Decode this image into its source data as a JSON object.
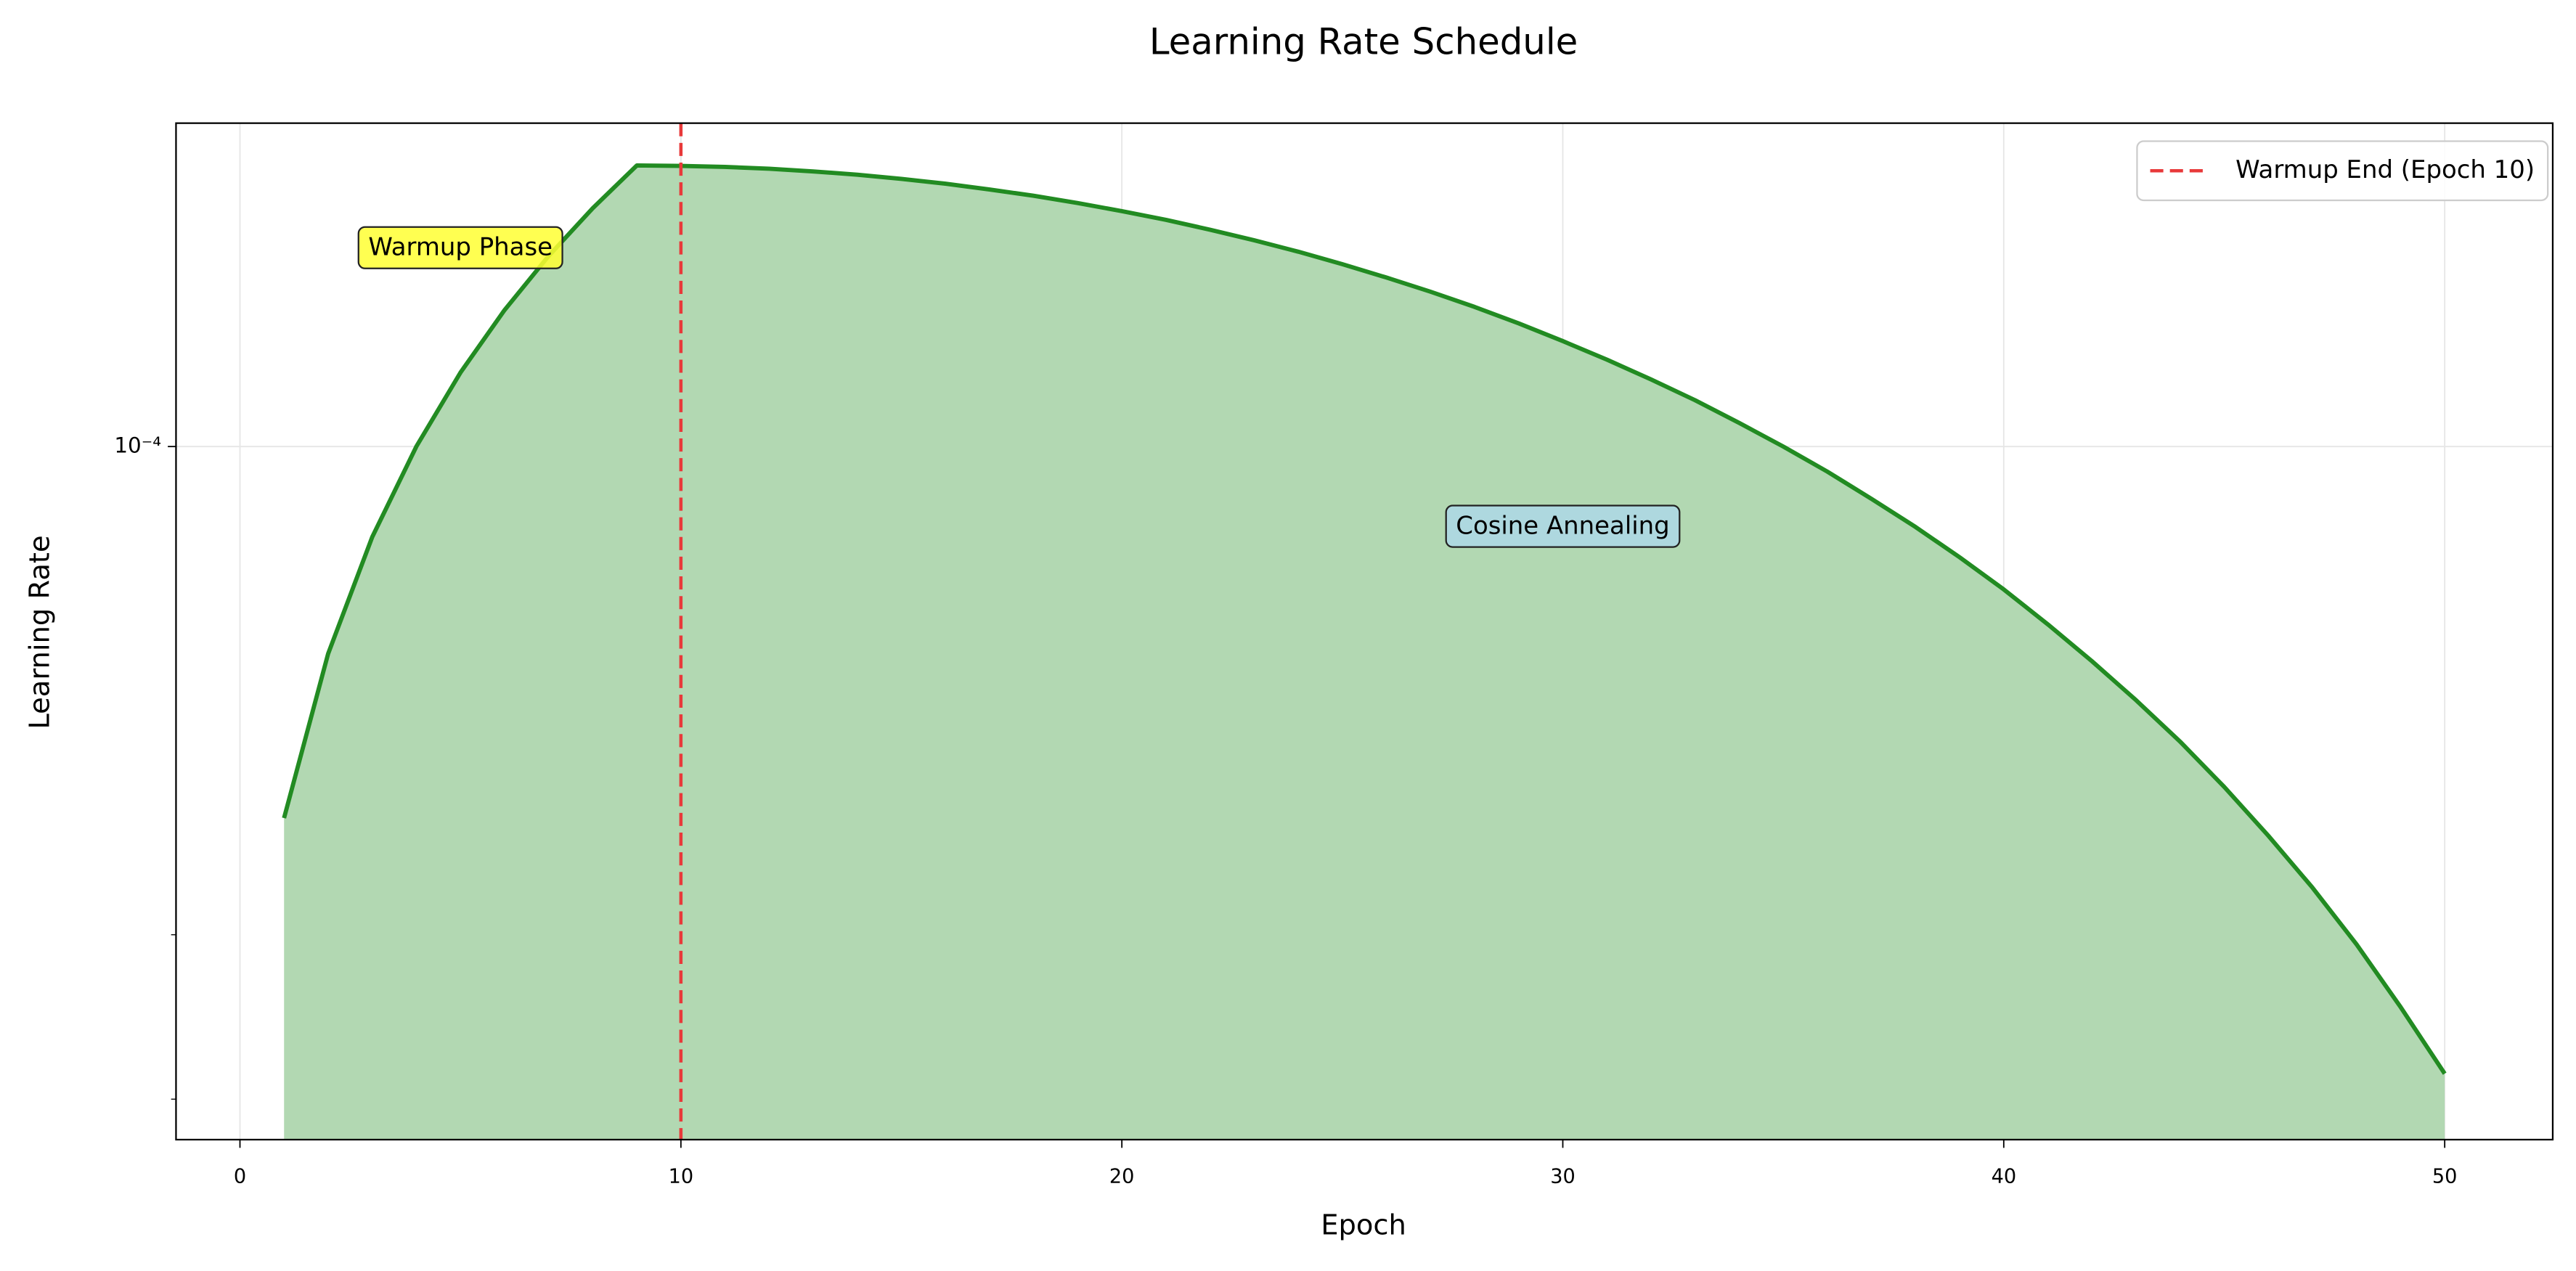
{
  "chart_data": {
    "type": "line",
    "title": "Learning Rate Schedule",
    "x_label": "Epoch",
    "y_label": "Learning Rate",
    "x": [
      1,
      2,
      3,
      4,
      5,
      6,
      7,
      8,
      9,
      10,
      11,
      12,
      13,
      14,
      15,
      16,
      17,
      18,
      19,
      20,
      21,
      22,
      23,
      24,
      25,
      26,
      27,
      28,
      29,
      30,
      31,
      32,
      33,
      34,
      35,
      36,
      37,
      38,
      39,
      40,
      41,
      42,
      43,
      44,
      45,
      46,
      47,
      48,
      49,
      50
    ],
    "series": [
      {
        "color": "#228b22",
        "fill_color": "#b2d8b2",
        "values": [
          4e-05,
          6e-05,
          8e-05,
          0.0001,
          0.00012,
          0.00014,
          0.00016,
          0.00018,
          0.0002,
          0.0001998,
          0.0001993,
          0.0001984,
          0.0001971,
          0.0001955,
          0.0001935,
          0.0001912,
          0.0001885,
          0.0001856,
          0.0001823,
          0.0001787,
          0.0001749,
          0.0001707,
          0.0001663,
          0.0001617,
          0.0001568,
          0.0001517,
          0.0001465,
          0.0001411,
          0.0001355,
          0.0001297,
          0.0001239,
          0.000118,
          0.0001121,
          0.000106,
          0.0001,
          9.4e-05,
          8.79e-05,
          8.2e-05,
          7.61e-05,
          7.03e-05,
          6.45e-05,
          5.89e-05,
          5.35e-05,
          4.83e-05,
          4.32e-05,
          3.83e-05,
          3.37e-05,
          2.93e-05,
          2.51e-05,
          2.13e-05
        ]
      }
    ],
    "vline": {
      "x": 10,
      "label": "Warmup End (Epoch 10)",
      "color": "#e8393a"
    },
    "annotations": [
      {
        "text": "Warmup Phase",
        "x": 5,
        "y": 0.000163,
        "color": "#ffff33"
      },
      {
        "text": "Cosine Annealing",
        "x": 30,
        "y": 8.2e-05,
        "color": "#add8e6"
      }
    ],
    "xlim": [
      -1.45,
      52.45
    ],
    "xticks": [
      0,
      10,
      20,
      30,
      40,
      50
    ],
    "ylim": [
      1.81e-05,
      0.000222
    ],
    "y_scale": "log",
    "yticks": [
      {
        "value": 0.0001,
        "label": "10⁻⁴"
      }
    ],
    "y_minor_ticks": [
      2e-05,
      3e-05
    ],
    "grid": true,
    "legend_loc": "upper right"
  }
}
